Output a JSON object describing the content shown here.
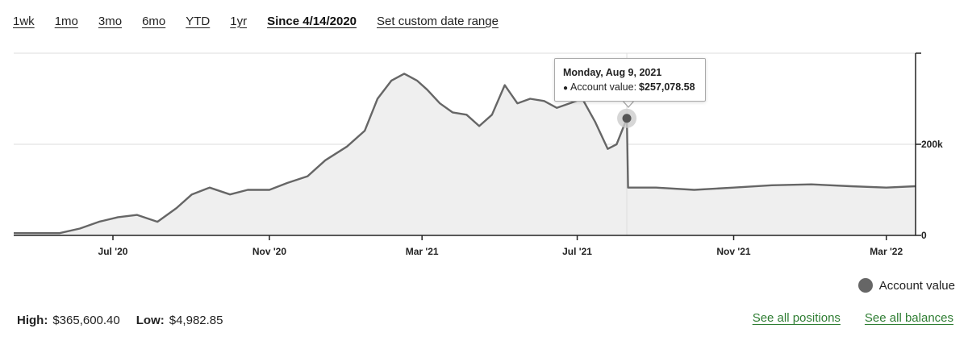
{
  "ranges": [
    {
      "label": "1wk",
      "active": false
    },
    {
      "label": "1mo",
      "active": false
    },
    {
      "label": "3mo",
      "active": false
    },
    {
      "label": "6mo",
      "active": false
    },
    {
      "label": "YTD",
      "active": false
    },
    {
      "label": "1yr",
      "active": false
    },
    {
      "label": "Since 4/14/2020",
      "active": true
    },
    {
      "label": "Set custom date range",
      "active": false
    }
  ],
  "tooltip": {
    "date": "Monday, Aug 9, 2021",
    "series_name": "Account value:",
    "value": "$257,078.58"
  },
  "legend": {
    "label": "Account value",
    "color": "#666666"
  },
  "stats": {
    "high_label": "High:",
    "high_value": "$365,600.40",
    "low_label": "Low:",
    "low_value": "$4,982.85"
  },
  "links": {
    "positions": "See all positions",
    "balances": "See all balances"
  },
  "colors": {
    "line": "#666666",
    "fill": "#efefef",
    "grid": "#dddddd",
    "axis": "#222222",
    "link": "#2e7d32"
  },
  "chart_data": {
    "type": "area",
    "x_tick_labels": [
      "Jul '20",
      "Nov '20",
      "Mar '21",
      "Jul '21",
      "Nov '21",
      "Mar '22"
    ],
    "x_tick_dates": [
      "2020-07-01",
      "2020-11-01",
      "2021-03-01",
      "2021-07-01",
      "2021-11-01",
      "2022-03-01"
    ],
    "y_tick_labels": [
      "0",
      "200k"
    ],
    "y_tick_values": [
      0,
      200000
    ],
    "y_range": [
      0,
      400000
    ],
    "x_range": [
      "2020-04-14",
      "2022-03-24"
    ],
    "highlight": {
      "x": "2021-08-09",
      "y": 257078.58
    },
    "series": [
      {
        "name": "Account value",
        "x": [
          "2020-04-14",
          "2020-05-01",
          "2020-05-20",
          "2020-06-05",
          "2020-06-20",
          "2020-07-05",
          "2020-07-20",
          "2020-08-05",
          "2020-08-20",
          "2020-09-01",
          "2020-09-15",
          "2020-10-01",
          "2020-10-15",
          "2020-11-01",
          "2020-11-15",
          "2020-12-01",
          "2020-12-15",
          "2021-01-01",
          "2021-01-15",
          "2021-01-25",
          "2021-02-05",
          "2021-02-15",
          "2021-02-25",
          "2021-03-05",
          "2021-03-15",
          "2021-03-25",
          "2021-04-05",
          "2021-04-15",
          "2021-04-25",
          "2021-05-05",
          "2021-05-15",
          "2021-05-25",
          "2021-06-05",
          "2021-06-15",
          "2021-06-25",
          "2021-07-05",
          "2021-07-15",
          "2021-07-25",
          "2021-08-01",
          "2021-08-09",
          "2021-08-10",
          "2021-09-01",
          "2021-10-01",
          "2021-11-01",
          "2021-12-01",
          "2022-01-01",
          "2022-02-01",
          "2022-03-01",
          "2022-03-24"
        ],
        "values": [
          5000,
          5000,
          5000,
          15000,
          30000,
          40000,
          45000,
          30000,
          60000,
          90000,
          105000,
          90000,
          100000,
          100000,
          115000,
          130000,
          165000,
          195000,
          230000,
          300000,
          340000,
          355000,
          340000,
          320000,
          290000,
          270000,
          265000,
          240000,
          265000,
          330000,
          290000,
          300000,
          295000,
          280000,
          290000,
          300000,
          250000,
          190000,
          200000,
          257078,
          105000,
          105000,
          100000,
          105000,
          110000,
          112000,
          108000,
          105000,
          108000
        ]
      }
    ],
    "legend": "bottom-right",
    "grid": true
  }
}
